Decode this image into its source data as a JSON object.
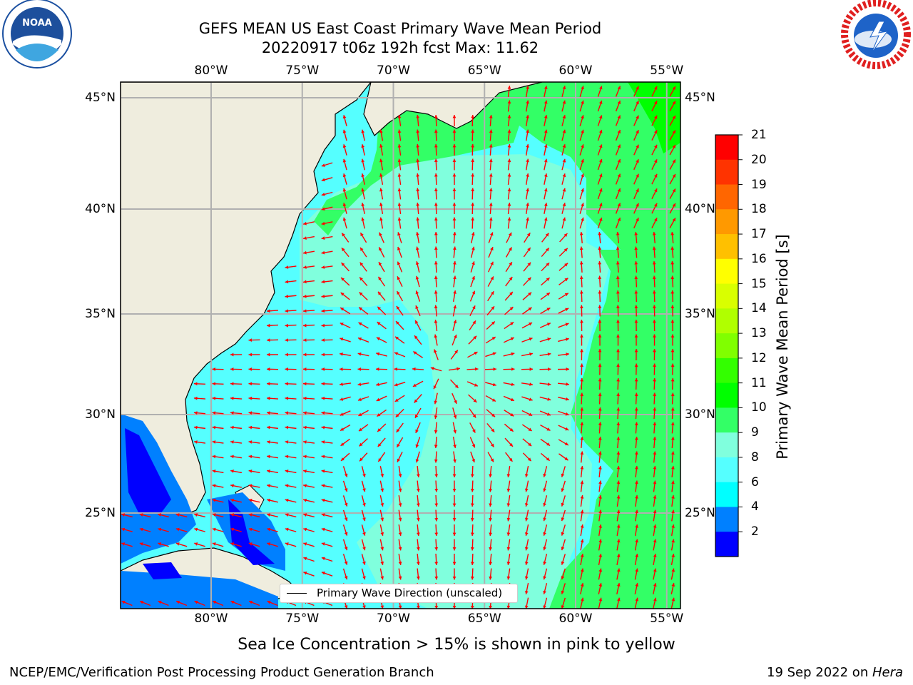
{
  "header": {
    "title_line1": "GEFS MEAN US East Coast Primary Wave Mean Period",
    "title_line2": "20220917 t06z 192h fcst   Max: 11.62"
  },
  "logos": {
    "left": {
      "icon": "noaa-logo-icon",
      "text": "NOAA"
    },
    "right": {
      "icon": "nws-logo-icon",
      "text": "NATIONAL WEATHER SERVICE"
    }
  },
  "map": {
    "lon_labels": [
      "80°W",
      "75°W",
      "70°W",
      "65°W",
      "60°W",
      "55°W"
    ],
    "lat_labels": [
      "45°N",
      "40°N",
      "35°N",
      "30°N",
      "25°N"
    ],
    "legend_label": "Primary Wave Direction (unscaled)",
    "colors": {
      "land": "#efedde",
      "grid": "#b0b0b0",
      "arrow": "#ff0000",
      "coast": "#000000"
    }
  },
  "colorbar": {
    "title": "Primary Wave Mean Period [s]",
    "ticks": [
      "21",
      "20",
      "19",
      "18",
      "17",
      "16",
      "15",
      "14",
      "13",
      "12",
      "11",
      "10",
      "9",
      "8",
      "6",
      "4",
      "2"
    ],
    "colors_top_to_bottom": [
      "#ff0000",
      "#ff3300",
      "#ff6600",
      "#ff9900",
      "#ffc000",
      "#ffff00",
      "#d9ff00",
      "#b0ff00",
      "#80ff00",
      "#33ff00",
      "#00ff00",
      "#33ff66",
      "#80ffdd",
      "#55ffff",
      "#00ffff",
      "#0080ff",
      "#0000ff"
    ]
  },
  "note": "Sea Ice Concentration > 15% is shown in pink to yellow",
  "footer": {
    "left": "NCEP/EMC/Verification Post Processing Product Generation Branch",
    "right_prefix": "19 Sep 2022 on ",
    "right_machine": "Hera"
  }
}
